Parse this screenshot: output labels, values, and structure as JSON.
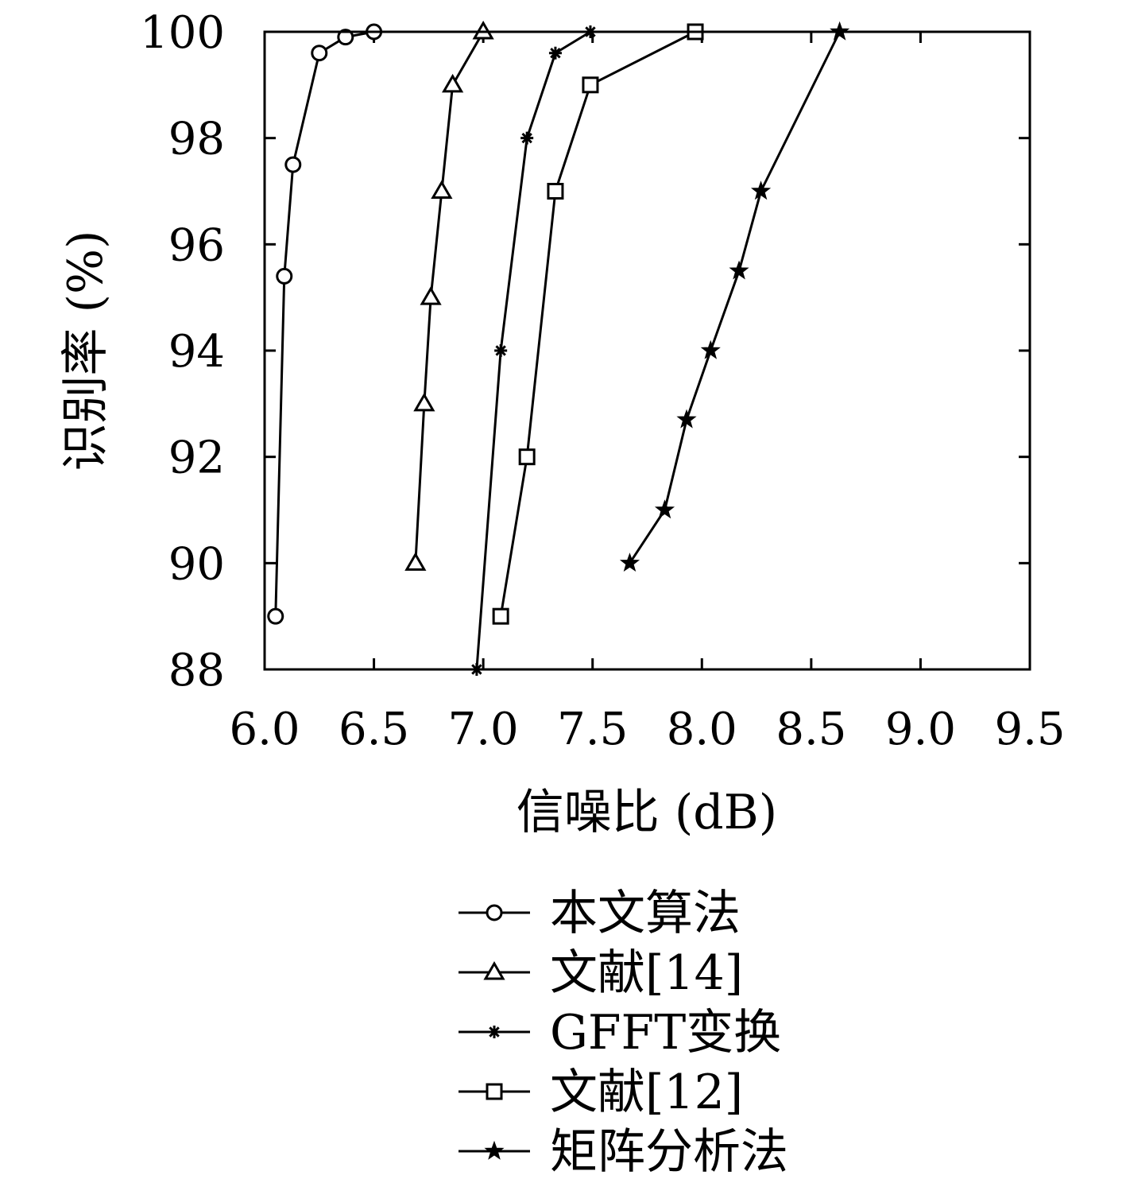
{
  "chart_data": {
    "type": "line",
    "xlabel": "信噪比 (dB)",
    "ylabel": "识别率 (%)",
    "xlim": [
      6.0,
      9.5
    ],
    "ylim": [
      88,
      100
    ],
    "xticks": [
      "6.0",
      "6.5",
      "7.0",
      "7.5",
      "8.0",
      "8.5",
      "9.0",
      "9.5"
    ],
    "yticks": [
      "88",
      "90",
      "92",
      "94",
      "96",
      "98",
      "100"
    ],
    "grid": false,
    "legend_position": "bottom-center",
    "series": [
      {
        "name": "本文算法",
        "marker": "circle",
        "x": [
          6.05,
          6.09,
          6.13,
          6.25,
          6.37,
          6.5
        ],
        "y": [
          89.0,
          95.4,
          97.5,
          99.6,
          99.9,
          100.0
        ]
      },
      {
        "name": "文献[14]",
        "marker": "triangle",
        "x": [
          6.69,
          6.73,
          6.76,
          6.81,
          6.86,
          7.0
        ],
        "y": [
          90.0,
          93.0,
          95.0,
          97.0,
          99.0,
          100.0
        ]
      },
      {
        "name": "GFFT变换",
        "marker": "asterisk",
        "x": [
          6.97,
          7.08,
          7.2,
          7.33,
          7.49
        ],
        "y": [
          88.0,
          94.0,
          98.0,
          99.6,
          100.0
        ]
      },
      {
        "name": "文献[12]",
        "marker": "square",
        "x": [
          7.08,
          7.2,
          7.33,
          7.49,
          7.97
        ],
        "y": [
          89.0,
          92.0,
          97.0,
          99.0,
          100.0
        ]
      },
      {
        "name": "矩阵分析法",
        "marker": "star",
        "x": [
          7.67,
          7.83,
          7.93,
          8.04,
          8.17,
          8.27,
          8.63
        ],
        "y": [
          90.0,
          91.0,
          92.7,
          94.0,
          95.5,
          97.0,
          100.0
        ]
      }
    ]
  }
}
